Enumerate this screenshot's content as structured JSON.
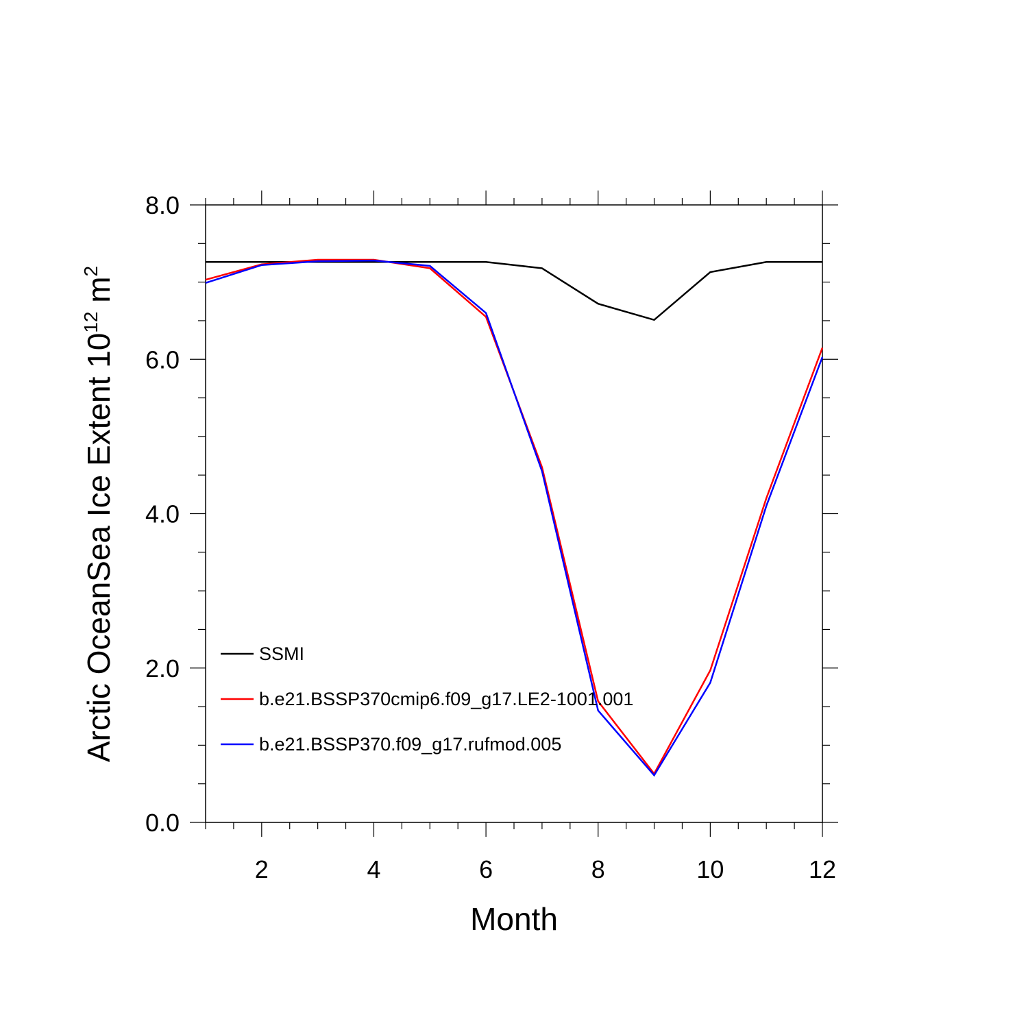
{
  "chart_data": {
    "type": "line",
    "xlabel": "Month",
    "ylabel": {
      "prefix": "Arctic OceanSea Ice Extent 10",
      "exponent": "12",
      "unit": " m",
      "unit_exponent": "2"
    },
    "xlim": [
      1,
      12
    ],
    "ylim": [
      0,
      8
    ],
    "x_ticks": [
      2,
      4,
      6,
      8,
      10,
      12
    ],
    "x_tick_labels": [
      "2",
      "4",
      "6",
      "8",
      "10",
      "12"
    ],
    "y_ticks": [
      0,
      2,
      4,
      6,
      8
    ],
    "y_tick_labels": [
      "0.0",
      "2.0",
      "4.0",
      "6.0",
      "8.0"
    ],
    "grid": false,
    "legend_position": "lower-left",
    "x": [
      1,
      2,
      3,
      4,
      5,
      6,
      7,
      8,
      9,
      10,
      11,
      12
    ],
    "series": [
      {
        "name": "SSMI",
        "color": "#000000",
        "values": [
          7.26,
          7.26,
          7.26,
          7.26,
          7.26,
          7.26,
          7.18,
          6.72,
          6.51,
          7.13,
          7.26,
          7.26
        ]
      },
      {
        "name": "b.e21.BSSP370cmip6.f09_g17.LE2-1001.001",
        "color": "#ff0000",
        "values": [
          7.03,
          7.23,
          7.29,
          7.29,
          7.18,
          6.55,
          4.6,
          1.57,
          0.63,
          1.97,
          4.2,
          6.15
        ]
      },
      {
        "name": "b.e21.BSSP370.f09_g17.rufmod.005",
        "color": "#0000ff",
        "values": [
          6.99,
          7.22,
          7.27,
          7.28,
          7.21,
          6.6,
          4.55,
          1.45,
          0.61,
          1.81,
          4.1,
          6.03
        ]
      }
    ]
  }
}
